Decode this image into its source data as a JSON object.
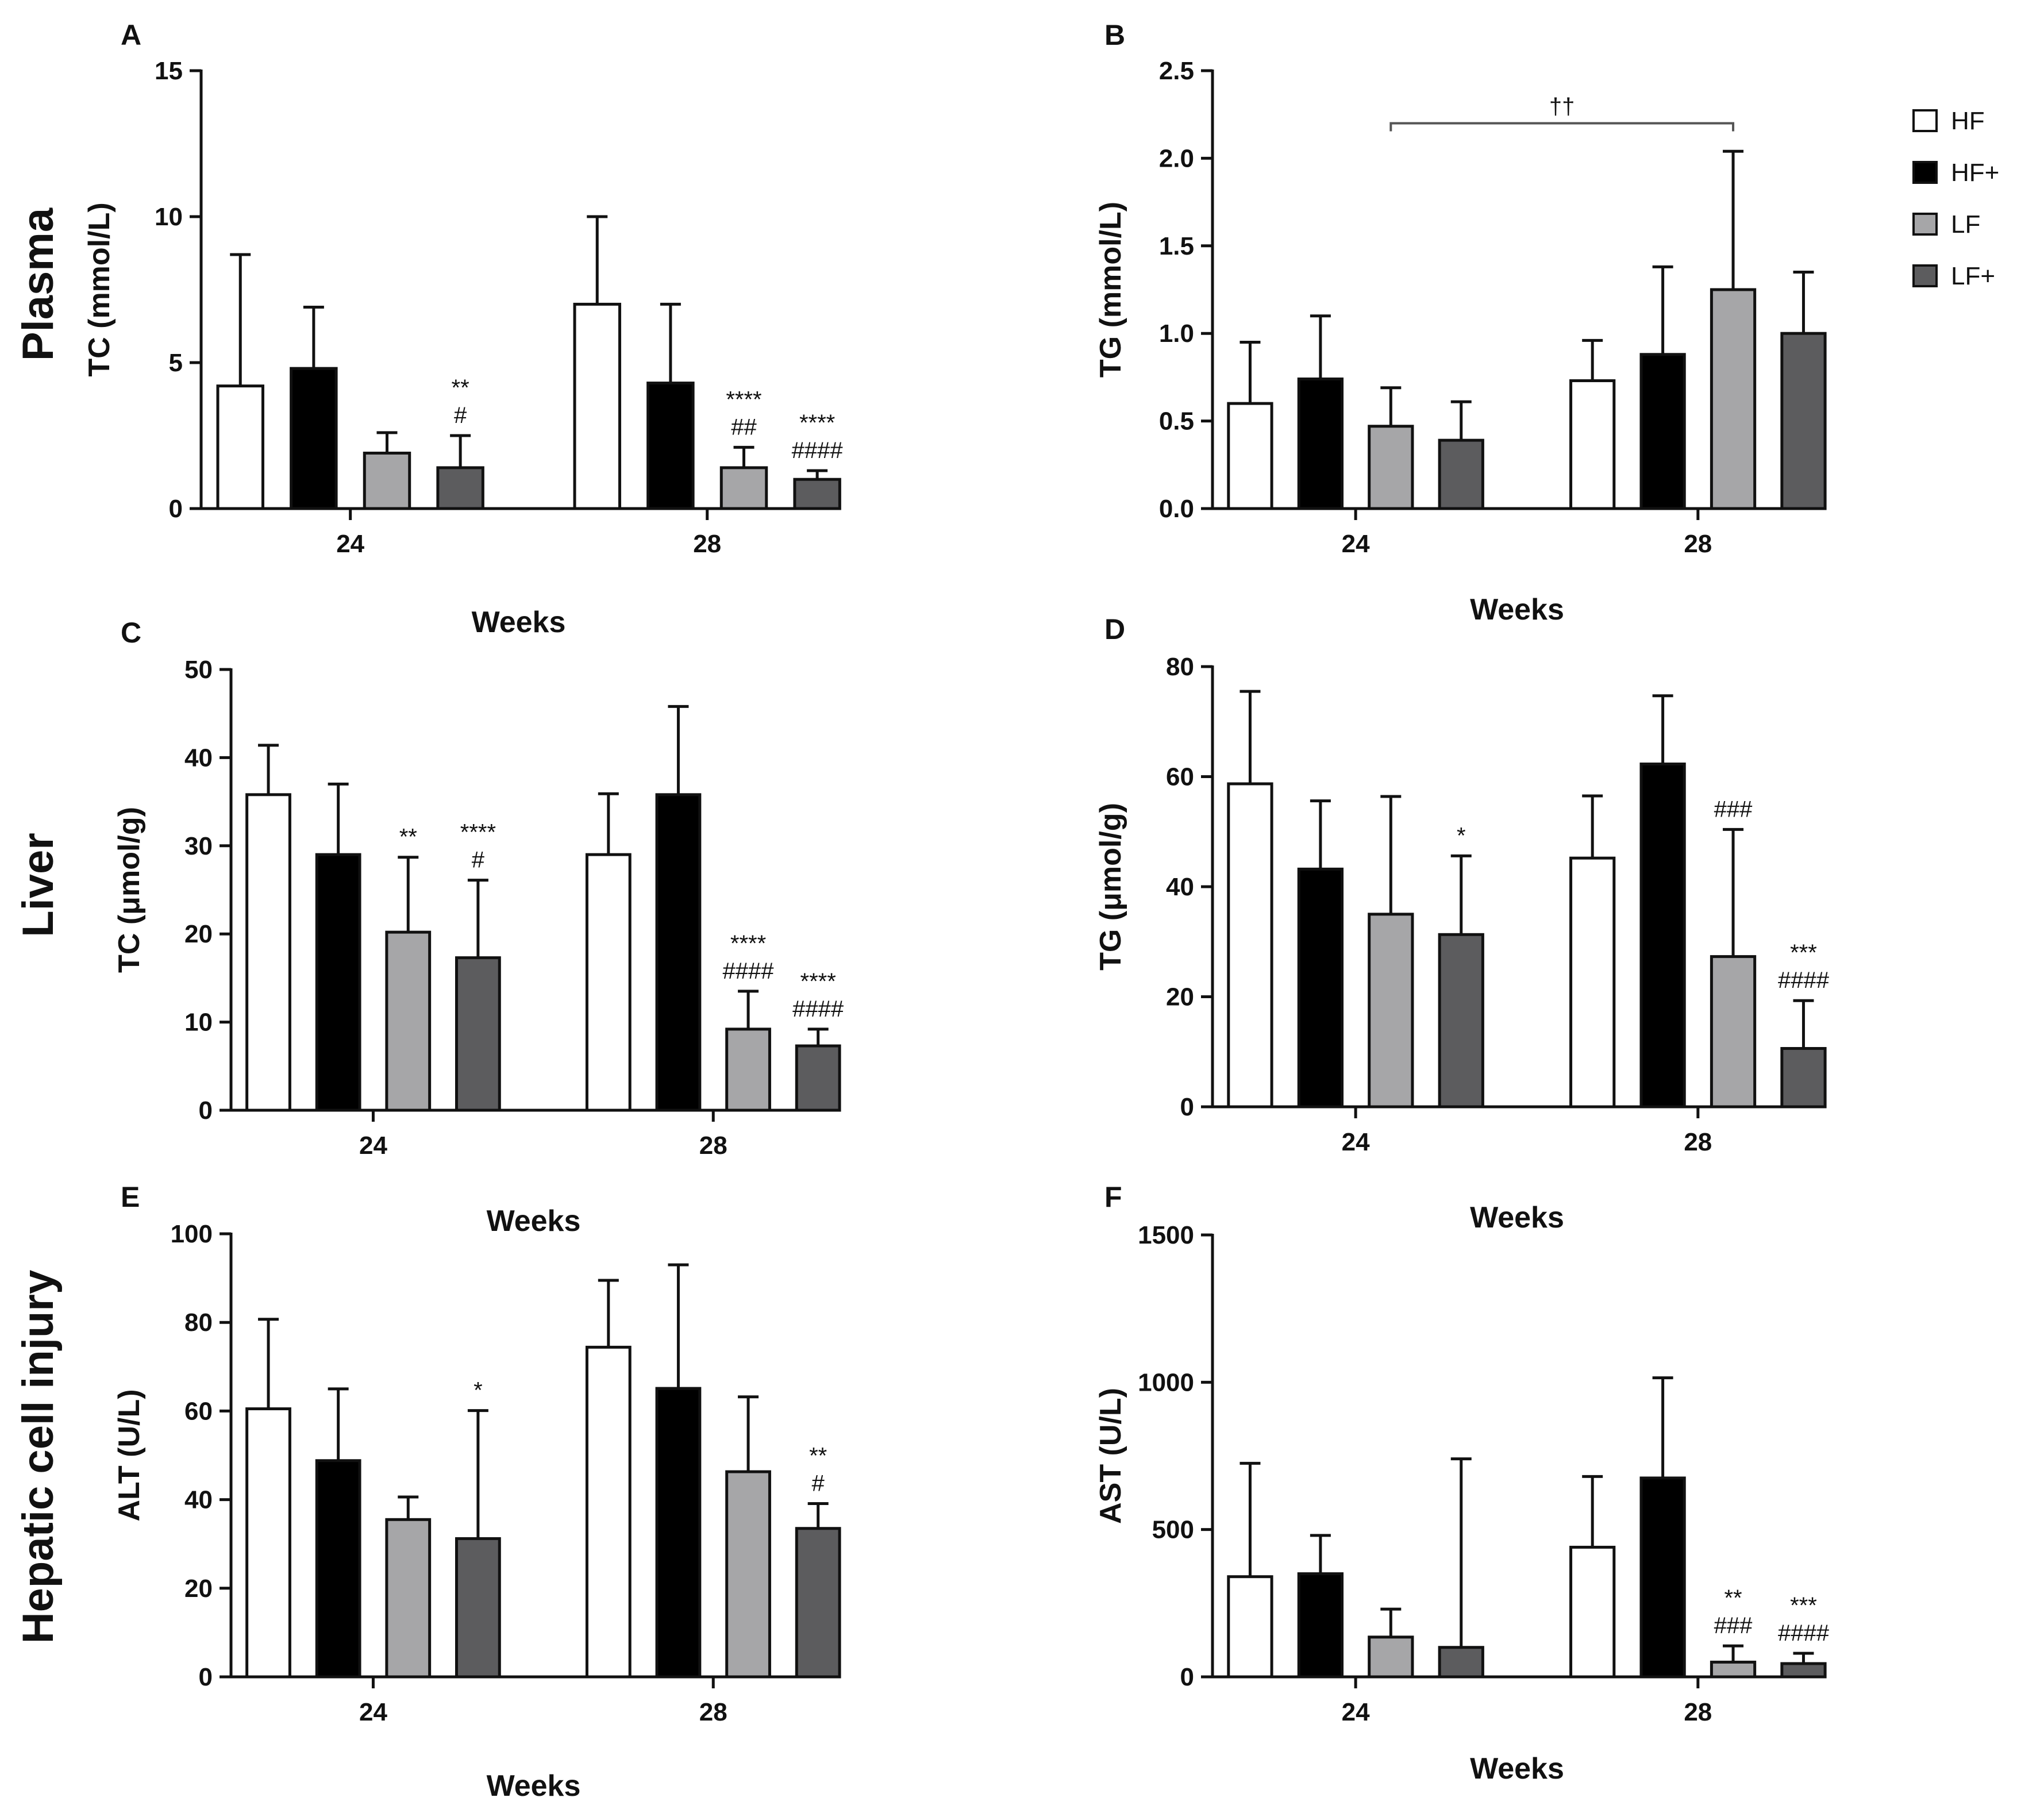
{
  "row_titles": [
    "Plasma",
    "Liver",
    "Hepatic cell injury"
  ],
  "legend": [
    {
      "label": "HF",
      "color": "#ffffff"
    },
    {
      "label": "HF+",
      "color": "#000000"
    },
    {
      "label": "LF",
      "color": "#a6a6a8"
    },
    {
      "label": "LF+",
      "color": "#5c5c5e"
    }
  ],
  "chart_data": [
    {
      "panel": "A",
      "type": "bar",
      "ylabel": "TC (mmol/L)",
      "xlabel": "Weeks",
      "categories": [
        "24",
        "28"
      ],
      "ylim": [
        0,
        15
      ],
      "yticks": [
        0,
        5,
        10,
        15
      ],
      "series": [
        {
          "name": "HF",
          "values": [
            4.2,
            7.0
          ],
          "errors": [
            4.5,
            3.0
          ]
        },
        {
          "name": "HF+",
          "values": [
            4.8,
            4.3
          ],
          "errors": [
            2.1,
            2.7
          ]
        },
        {
          "name": "LF",
          "values": [
            1.9,
            1.4
          ],
          "errors": [
            0.7,
            0.7
          ]
        },
        {
          "name": "LF+",
          "values": [
            1.4,
            1.0
          ],
          "errors": [
            1.1,
            0.3
          ]
        }
      ],
      "annotations": [
        {
          "group": 0,
          "series": 3,
          "lines": [
            "**",
            "#"
          ]
        },
        {
          "group": 1,
          "series": 2,
          "lines": [
            "****",
            "##"
          ]
        },
        {
          "group": 1,
          "series": 3,
          "lines": [
            "****",
            "####"
          ]
        }
      ]
    },
    {
      "panel": "B",
      "type": "bar",
      "ylabel": "TG (mmol/L)",
      "xlabel": "Weeks",
      "categories": [
        "24",
        "28"
      ],
      "ylim": [
        0,
        2.5
      ],
      "yticks": [
        0.0,
        0.5,
        1.0,
        1.5,
        2.0,
        2.5
      ],
      "series": [
        {
          "name": "HF",
          "values": [
            0.6,
            0.73
          ],
          "errors": [
            0.35,
            0.23
          ]
        },
        {
          "name": "HF+",
          "values": [
            0.74,
            0.88
          ],
          "errors": [
            0.36,
            0.5
          ]
        },
        {
          "name": "LF",
          "values": [
            0.47,
            1.25
          ],
          "errors": [
            0.22,
            0.79
          ]
        },
        {
          "name": "LF+",
          "values": [
            0.39,
            1.0
          ],
          "errors": [
            0.22,
            0.35
          ]
        }
      ],
      "annotations": [],
      "bracket": {
        "from_group": 0,
        "from_series": 2,
        "to_group": 1,
        "to_series": 2,
        "value": 2.2,
        "label": "††"
      }
    },
    {
      "panel": "C",
      "type": "bar",
      "ylabel": "TC (μmol/g)",
      "xlabel": "Weeks",
      "categories": [
        "24",
        "28"
      ],
      "ylim": [
        0,
        50
      ],
      "yticks": [
        0,
        10,
        20,
        30,
        40,
        50
      ],
      "series": [
        {
          "name": "HF",
          "values": [
            35.8,
            29.0
          ],
          "errors": [
            5.6,
            6.9
          ]
        },
        {
          "name": "HF+",
          "values": [
            29.0,
            35.8
          ],
          "errors": [
            8.0,
            10.0
          ]
        },
        {
          "name": "LF",
          "values": [
            20.2,
            9.2
          ],
          "errors": [
            8.5,
            4.3
          ]
        },
        {
          "name": "LF+",
          "values": [
            17.3,
            7.3
          ],
          "errors": [
            8.8,
            1.9
          ]
        }
      ],
      "annotations": [
        {
          "group": 0,
          "series": 2,
          "lines": [
            "**"
          ]
        },
        {
          "group": 0,
          "series": 3,
          "lines": [
            "****",
            "#"
          ]
        },
        {
          "group": 1,
          "series": 2,
          "lines": [
            "****",
            "####"
          ]
        },
        {
          "group": 1,
          "series": 3,
          "lines": [
            "****",
            "####"
          ]
        }
      ]
    },
    {
      "panel": "D",
      "type": "bar",
      "ylabel": "TG (μmol/g)",
      "xlabel": "Weeks",
      "categories": [
        "24",
        "28"
      ],
      "ylim": [
        0,
        80
      ],
      "yticks": [
        0,
        20,
        40,
        60,
        80
      ],
      "series": [
        {
          "name": "HF",
          "values": [
            58.7,
            45.2
          ],
          "errors": [
            16.8,
            11.3
          ]
        },
        {
          "name": "HF+",
          "values": [
            43.2,
            62.3
          ],
          "errors": [
            12.4,
            12.4
          ]
        },
        {
          "name": "LF",
          "values": [
            35.0,
            27.3
          ],
          "errors": [
            21.4,
            23.1
          ]
        },
        {
          "name": "LF+",
          "values": [
            31.3,
            10.6
          ],
          "errors": [
            14.3,
            8.7
          ]
        }
      ],
      "annotations": [
        {
          "group": 0,
          "series": 3,
          "lines": [
            "*"
          ]
        },
        {
          "group": 1,
          "series": 2,
          "lines": [
            "###"
          ]
        },
        {
          "group": 1,
          "series": 3,
          "lines": [
            "***",
            "####"
          ]
        }
      ]
    },
    {
      "panel": "E",
      "type": "bar",
      "ylabel": "ALT (U/L)",
      "xlabel": "Weeks",
      "categories": [
        "24",
        "28"
      ],
      "ylim": [
        0,
        100
      ],
      "yticks": [
        0,
        20,
        40,
        60,
        80,
        100
      ],
      "series": [
        {
          "name": "HF",
          "values": [
            60.5,
            74.4
          ],
          "errors": [
            20.2,
            15.1
          ]
        },
        {
          "name": "HF+",
          "values": [
            48.8,
            65.1
          ],
          "errors": [
            16.2,
            27.9
          ]
        },
        {
          "name": "LF",
          "values": [
            35.5,
            46.3
          ],
          "errors": [
            5.1,
            16.9
          ]
        },
        {
          "name": "LF+",
          "values": [
            31.2,
            33.5
          ],
          "errors": [
            28.9,
            5.6
          ]
        }
      ],
      "annotations": [
        {
          "group": 0,
          "series": 3,
          "lines": [
            "*"
          ]
        },
        {
          "group": 1,
          "series": 3,
          "lines": [
            "**",
            "#"
          ]
        }
      ]
    },
    {
      "panel": "F",
      "type": "bar",
      "ylabel": "AST (U/L)",
      "xlabel": "Weeks",
      "categories": [
        "24",
        "28"
      ],
      "ylim": [
        0,
        1500
      ],
      "yticks": [
        0,
        500,
        1000,
        1500
      ],
      "series": [
        {
          "name": "HF",
          "values": [
            340,
            440
          ],
          "errors": [
            385,
            240
          ]
        },
        {
          "name": "HF+",
          "values": [
            350,
            675
          ],
          "errors": [
            130,
            340
          ]
        },
        {
          "name": "LF",
          "values": [
            135,
            50
          ],
          "errors": [
            95,
            55
          ]
        },
        {
          "name": "LF+",
          "values": [
            100,
            45
          ],
          "errors": [
            640,
            35
          ]
        }
      ],
      "annotations": [
        {
          "group": 1,
          "series": 2,
          "lines": [
            "**",
            "###"
          ]
        },
        {
          "group": 1,
          "series": 3,
          "lines": [
            "***",
            "####"
          ]
        }
      ]
    }
  ]
}
